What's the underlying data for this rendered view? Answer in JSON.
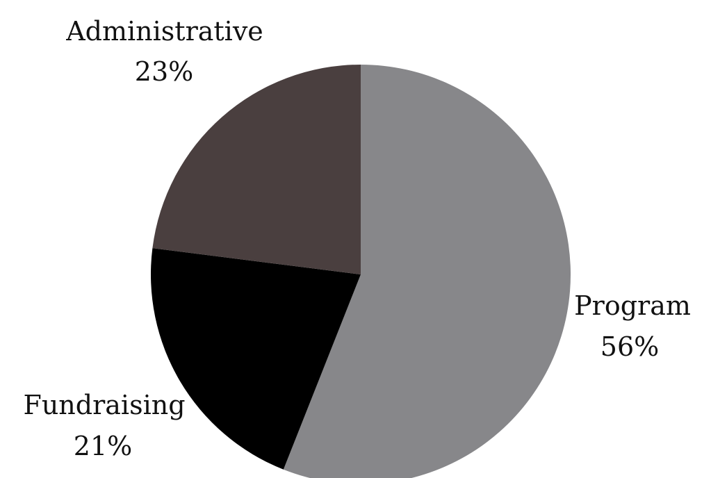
{
  "chart_data": {
    "type": "pie",
    "slices": [
      {
        "label": "Program",
        "value_label": "56%",
        "value": 56,
        "color": "#87878a"
      },
      {
        "label": "Fundraising",
        "value_label": "21%",
        "value": 21,
        "color": "#000000"
      },
      {
        "label": "Administrative",
        "value_label": "23%",
        "value": 23,
        "color": "#4a3f3f"
      }
    ],
    "start_angle": "12 o'clock",
    "direction": "clockwise",
    "legend": "none",
    "labels_position": "outside"
  }
}
